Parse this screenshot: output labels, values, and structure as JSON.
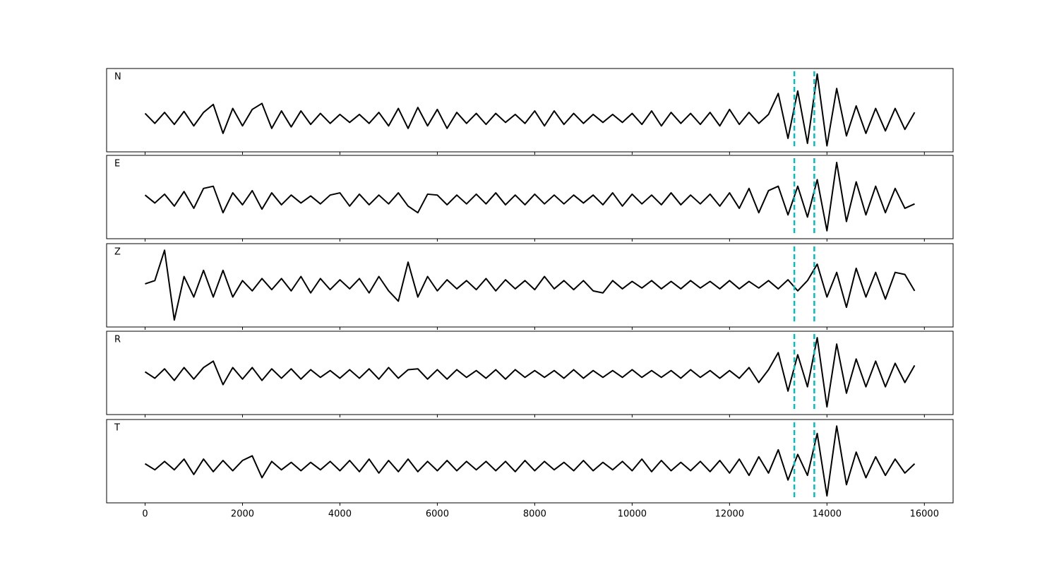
{
  "chart_data": {
    "type": "line",
    "color": "#000000",
    "vline_color": "#00bfbf",
    "vline_style": "dashed",
    "vlines": [
      13330,
      13740
    ],
    "xlim": [
      -790,
      16590
    ],
    "xticks": [
      0,
      2000,
      4000,
      6000,
      8000,
      10000,
      12000,
      14000,
      16000
    ],
    "x": [
      0,
      200,
      400,
      600,
      800,
      1000,
      1200,
      1400,
      1600,
      1800,
      2000,
      2200,
      2400,
      2600,
      2800,
      3000,
      3200,
      3400,
      3600,
      3800,
      4000,
      4200,
      4400,
      4600,
      4800,
      5000,
      5200,
      5400,
      5600,
      5800,
      6000,
      6200,
      6400,
      6600,
      6800,
      7000,
      7200,
      7400,
      7600,
      7800,
      8000,
      8200,
      8400,
      8600,
      8800,
      9000,
      9200,
      9400,
      9600,
      9800,
      10000,
      10200,
      10400,
      10600,
      10800,
      11000,
      11200,
      11400,
      11600,
      11800,
      12000,
      12200,
      12400,
      12600,
      12800,
      13000,
      13200,
      13400,
      13600,
      13800,
      14000,
      14200,
      14400,
      14600,
      14800,
      15000,
      15200,
      15400,
      15600,
      15800
    ],
    "panels": [
      {
        "label": "N",
        "ylim": [
          -0.67,
          1
        ],
        "values": [
          0.1,
          -0.1,
          0.12,
          -0.12,
          0.14,
          -0.15,
          0.12,
          0.28,
          -0.3,
          0.2,
          -0.15,
          0.18,
          0.3,
          -0.2,
          0.15,
          -0.17,
          0.15,
          -0.12,
          0.1,
          -0.1,
          0.08,
          -0.08,
          0.08,
          -0.1,
          0.12,
          -0.15,
          0.2,
          -0.2,
          0.22,
          -0.15,
          0.18,
          -0.2,
          0.12,
          -0.1,
          0.1,
          -0.12,
          0.1,
          -0.08,
          0.08,
          -0.1,
          0.15,
          -0.15,
          0.15,
          -0.12,
          0.1,
          -0.1,
          0.08,
          -0.08,
          0.08,
          -0.08,
          0.1,
          -0.12,
          0.15,
          -0.15,
          0.12,
          -0.1,
          0.1,
          -0.12,
          0.12,
          -0.15,
          0.18,
          -0.12,
          0.12,
          -0.1,
          0.08,
          0.5,
          -0.4,
          0.55,
          -0.5,
          0.89,
          -0.55,
          0.6,
          -0.35,
          0.25,
          -0.3,
          0.2,
          -0.25,
          0.2,
          -0.22,
          0.12
        ]
      },
      {
        "label": "E",
        "ylim": [
          -0.89,
          1
        ],
        "values": [
          0.1,
          -0.08,
          0.12,
          -0.15,
          0.18,
          -0.2,
          0.25,
          0.3,
          -0.3,
          0.15,
          -0.12,
          0.2,
          -0.22,
          0.15,
          -0.12,
          0.1,
          -0.08,
          0.08,
          -0.1,
          0.1,
          0.15,
          -0.15,
          0.12,
          -0.12,
          0.1,
          -0.1,
          0.15,
          -0.15,
          -0.3,
          0.12,
          0.1,
          -0.12,
          0.1,
          -0.1,
          0.12,
          -0.1,
          0.15,
          -0.12,
          0.1,
          -0.12,
          0.12,
          -0.1,
          0.1,
          -0.1,
          0.1,
          -0.08,
          0.1,
          -0.12,
          0.15,
          -0.15,
          0.12,
          -0.1,
          0.1,
          -0.12,
          0.15,
          -0.12,
          0.1,
          -0.1,
          0.12,
          -0.15,
          0.15,
          -0.2,
          0.25,
          -0.3,
          0.2,
          0.3,
          -0.35,
          0.3,
          -0.4,
          0.45,
          -0.71,
          0.84,
          -0.5,
          0.4,
          -0.35,
          0.3,
          -0.3,
          0.25,
          -0.2,
          -0.1
        ]
      },
      {
        "label": "Z",
        "ylim": [
          -1.03,
          1
        ],
        "values": [
          0.02,
          0.1,
          0.84,
          -0.86,
          0.2,
          -0.3,
          0.35,
          -0.3,
          0.35,
          -0.3,
          0.1,
          -0.15,
          0.15,
          -0.12,
          0.15,
          -0.15,
          0.2,
          -0.2,
          0.15,
          -0.12,
          0.12,
          -0.1,
          0.15,
          -0.2,
          0.2,
          -0.15,
          -0.4,
          0.55,
          -0.3,
          0.2,
          -0.15,
          0.12,
          -0.1,
          0.1,
          -0.12,
          0.15,
          -0.15,
          0.12,
          -0.1,
          0.1,
          -0.12,
          0.2,
          -0.1,
          0.1,
          -0.12,
          0.1,
          -0.15,
          -0.2,
          0.1,
          -0.1,
          0.08,
          -0.08,
          0.1,
          -0.1,
          0.08,
          -0.1,
          0.1,
          -0.08,
          0.08,
          -0.1,
          0.1,
          -0.1,
          0.08,
          -0.08,
          0.1,
          -0.1,
          0.12,
          -0.15,
          0.1,
          0.5,
          -0.3,
          0.3,
          -0.55,
          0.4,
          -0.3,
          0.3,
          -0.35,
          0.3,
          0.25,
          -0.15
        ]
      },
      {
        "label": "R",
        "ylim": [
          -0.95,
          1
        ],
        "values": [
          0.05,
          -0.1,
          0.12,
          -0.15,
          0.15,
          -0.12,
          0.15,
          0.3,
          -0.25,
          0.15,
          -0.12,
          0.15,
          -0.15,
          0.12,
          -0.1,
          0.12,
          -0.12,
          0.1,
          -0.08,
          0.08,
          -0.1,
          0.1,
          -0.1,
          0.12,
          -0.12,
          0.15,
          -0.1,
          0.1,
          0.12,
          -0.12,
          0.1,
          -0.12,
          0.1,
          -0.08,
          0.08,
          -0.1,
          0.1,
          -0.12,
          0.1,
          -0.08,
          0.08,
          -0.08,
          0.08,
          -0.1,
          0.1,
          -0.1,
          0.08,
          -0.08,
          0.08,
          -0.08,
          0.1,
          -0.08,
          0.08,
          -0.08,
          0.08,
          -0.1,
          0.1,
          -0.08,
          0.08,
          -0.1,
          0.08,
          -0.1,
          0.15,
          -0.2,
          0.1,
          0.5,
          -0.4,
          0.45,
          -0.3,
          0.85,
          -0.77,
          0.7,
          -0.45,
          0.35,
          -0.3,
          0.3,
          -0.3,
          0.25,
          -0.2,
          0.2
        ]
      },
      {
        "label": "T",
        "ylim": [
          -0.79,
          1
        ],
        "values": [
          0.05,
          -0.08,
          0.1,
          -0.08,
          0.15,
          -0.18,
          0.15,
          -0.12,
          0.12,
          -0.1,
          0.12,
          0.22,
          -0.25,
          0.1,
          -0.08,
          0.08,
          -0.1,
          0.08,
          -0.08,
          0.1,
          -0.1,
          0.12,
          -0.12,
          0.15,
          -0.15,
          0.12,
          -0.12,
          0.15,
          -0.12,
          0.1,
          -0.1,
          0.12,
          -0.1,
          0.1,
          -0.08,
          0.1,
          -0.1,
          0.1,
          -0.12,
          0.12,
          -0.1,
          0.1,
          -0.08,
          0.08,
          -0.1,
          0.12,
          -0.1,
          0.08,
          -0.08,
          0.1,
          -0.1,
          0.15,
          -0.12,
          0.12,
          -0.1,
          0.08,
          -0.1,
          0.1,
          -0.12,
          0.12,
          -0.15,
          0.15,
          -0.2,
          0.2,
          -0.15,
          0.35,
          -0.3,
          0.25,
          -0.2,
          0.7,
          -0.64,
          0.86,
          -0.4,
          0.3,
          -0.25,
          0.2,
          -0.2,
          0.15,
          -0.15,
          0.05
        ]
      }
    ]
  }
}
